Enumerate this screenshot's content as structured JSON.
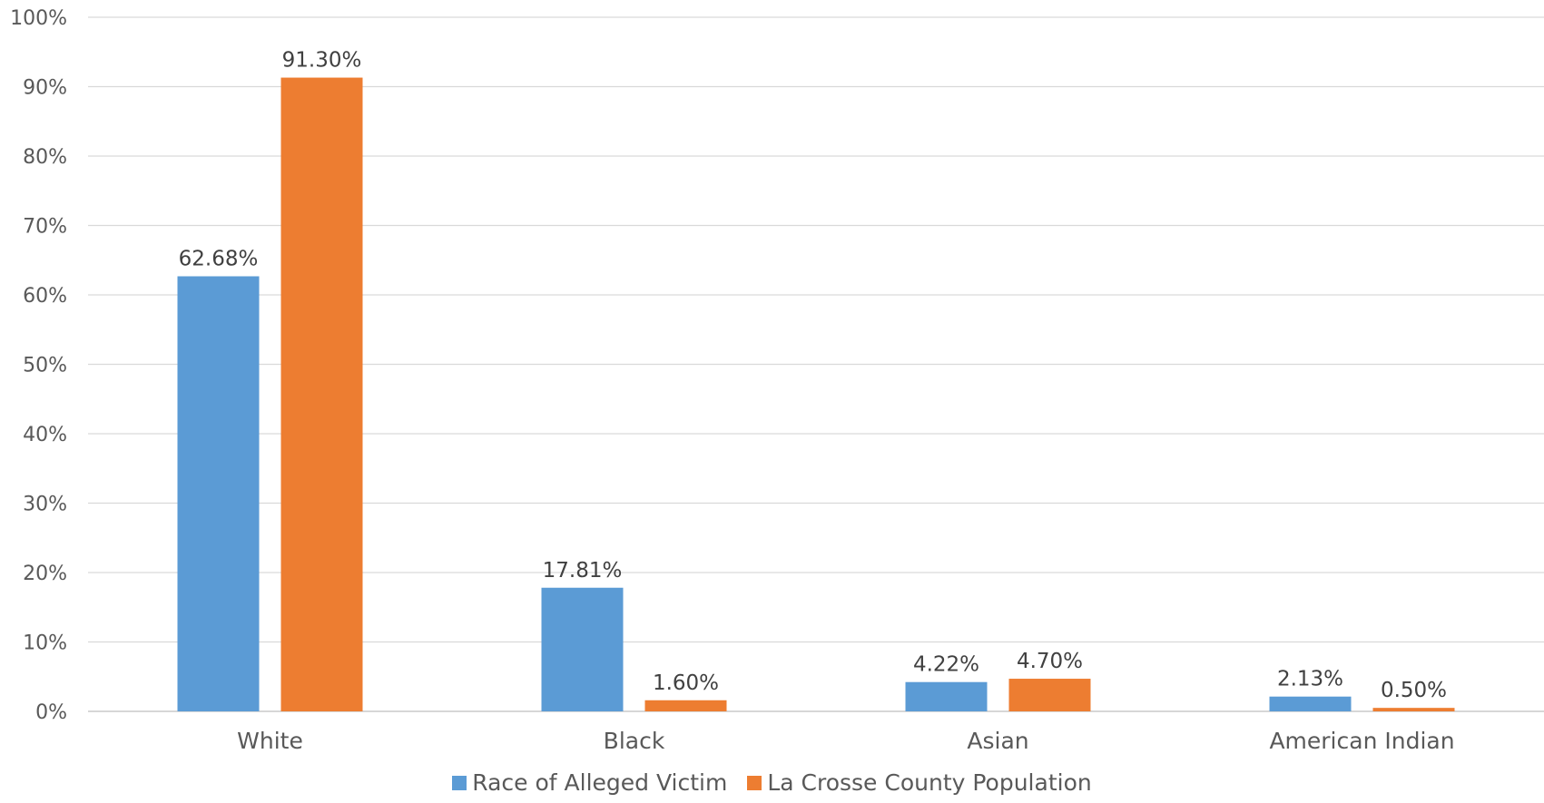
{
  "chart_data": {
    "type": "bar",
    "categories": [
      "White",
      "Black",
      "Asian",
      "American Indian"
    ],
    "series": [
      {
        "name": "Race of Alleged Victim",
        "color": "#5B9BD5",
        "values": [
          62.68,
          17.81,
          4.22,
          2.13
        ],
        "labels": [
          "62.68%",
          "17.81%",
          "4.22%",
          "2.13%"
        ]
      },
      {
        "name": "La Crosse County Population",
        "color": "#ED7D31",
        "values": [
          91.3,
          1.6,
          4.7,
          0.5
        ],
        "labels": [
          "91.30%",
          "1.60%",
          "4.70%",
          "0.50%"
        ]
      }
    ],
    "ylim": [
      0,
      100
    ],
    "yticks": [
      "0%",
      "10%",
      "20%",
      "30%",
      "40%",
      "50%",
      "60%",
      "70%",
      "80%",
      "90%",
      "100%"
    ],
    "grid": true,
    "legend_position": "bottom"
  }
}
